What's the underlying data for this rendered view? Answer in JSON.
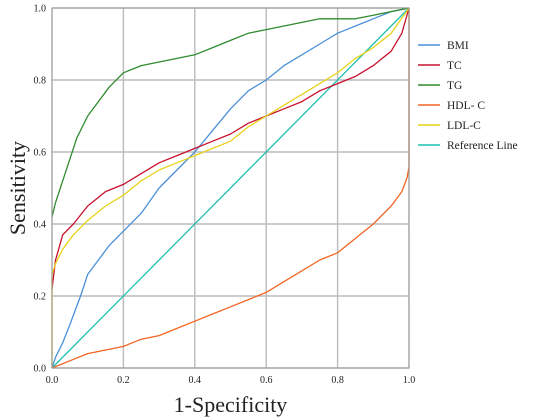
{
  "chart_data": {
    "type": "line",
    "title": "",
    "xlabel": "1-Specificity",
    "ylabel": "Sensitivity",
    "xlim": [
      0,
      1
    ],
    "ylim": [
      0,
      1
    ],
    "x_ticks": [
      "0.0",
      "0.2",
      "0.4",
      "0.6",
      "0.8",
      "1.0"
    ],
    "y_ticks": [
      "0.0",
      "0.2",
      "0.4",
      "0.6",
      "0.8",
      "1.0"
    ],
    "grid": true,
    "legend_position": "right",
    "series": [
      {
        "name": "BMI",
        "color": "#4a90d9",
        "points": [
          [
            0,
            0
          ],
          [
            0.01,
            0.03
          ],
          [
            0.03,
            0.07
          ],
          [
            0.05,
            0.12
          ],
          [
            0.08,
            0.2
          ],
          [
            0.1,
            0.26
          ],
          [
            0.13,
            0.3
          ],
          [
            0.16,
            0.34
          ],
          [
            0.2,
            0.38
          ],
          [
            0.25,
            0.43
          ],
          [
            0.3,
            0.5
          ],
          [
            0.35,
            0.55
          ],
          [
            0.4,
            0.6
          ],
          [
            0.45,
            0.66
          ],
          [
            0.5,
            0.72
          ],
          [
            0.55,
            0.77
          ],
          [
            0.6,
            0.8
          ],
          [
            0.65,
            0.84
          ],
          [
            0.7,
            0.87
          ],
          [
            0.75,
            0.9
          ],
          [
            0.8,
            0.93
          ],
          [
            0.85,
            0.95
          ],
          [
            0.9,
            0.97
          ],
          [
            0.95,
            0.99
          ],
          [
            1,
            1
          ]
        ]
      },
      {
        "name": "TC",
        "color": "#c8102e",
        "points": [
          [
            0,
            0.22
          ],
          [
            0.01,
            0.3
          ],
          [
            0.03,
            0.37
          ],
          [
            0.06,
            0.4
          ],
          [
            0.1,
            0.45
          ],
          [
            0.15,
            0.49
          ],
          [
            0.2,
            0.51
          ],
          [
            0.25,
            0.54
          ],
          [
            0.3,
            0.57
          ],
          [
            0.35,
            0.59
          ],
          [
            0.4,
            0.61
          ],
          [
            0.45,
            0.63
          ],
          [
            0.5,
            0.65
          ],
          [
            0.55,
            0.68
          ],
          [
            0.6,
            0.7
          ],
          [
            0.65,
            0.72
          ],
          [
            0.7,
            0.74
          ],
          [
            0.75,
            0.77
          ],
          [
            0.8,
            0.79
          ],
          [
            0.85,
            0.81
          ],
          [
            0.9,
            0.84
          ],
          [
            0.95,
            0.88
          ],
          [
            0.98,
            0.93
          ],
          [
            1,
            1
          ]
        ]
      },
      {
        "name": "TG",
        "color": "#2e8b2e",
        "points": [
          [
            0,
            0.42
          ],
          [
            0.01,
            0.46
          ],
          [
            0.03,
            0.52
          ],
          [
            0.05,
            0.58
          ],
          [
            0.07,
            0.64
          ],
          [
            0.1,
            0.7
          ],
          [
            0.13,
            0.74
          ],
          [
            0.16,
            0.78
          ],
          [
            0.2,
            0.82
          ],
          [
            0.25,
            0.84
          ],
          [
            0.3,
            0.85
          ],
          [
            0.35,
            0.86
          ],
          [
            0.4,
            0.87
          ],
          [
            0.45,
            0.89
          ],
          [
            0.5,
            0.91
          ],
          [
            0.55,
            0.93
          ],
          [
            0.6,
            0.94
          ],
          [
            0.65,
            0.95
          ],
          [
            0.7,
            0.96
          ],
          [
            0.75,
            0.97
          ],
          [
            0.8,
            0.97
          ],
          [
            0.85,
            0.97
          ],
          [
            0.9,
            0.98
          ],
          [
            0.95,
            0.99
          ],
          [
            1,
            1
          ]
        ]
      },
      {
        "name": "HDL- C",
        "color": "#f26522",
        "points": [
          [
            0,
            0
          ],
          [
            0.05,
            0.02
          ],
          [
            0.1,
            0.04
          ],
          [
            0.15,
            0.05
          ],
          [
            0.2,
            0.06
          ],
          [
            0.25,
            0.08
          ],
          [
            0.3,
            0.09
          ],
          [
            0.35,
            0.11
          ],
          [
            0.4,
            0.13
          ],
          [
            0.45,
            0.15
          ],
          [
            0.5,
            0.17
          ],
          [
            0.55,
            0.19
          ],
          [
            0.6,
            0.21
          ],
          [
            0.65,
            0.24
          ],
          [
            0.7,
            0.27
          ],
          [
            0.75,
            0.3
          ],
          [
            0.8,
            0.32
          ],
          [
            0.85,
            0.36
          ],
          [
            0.9,
            0.4
          ],
          [
            0.95,
            0.45
          ],
          [
            0.98,
            0.49
          ],
          [
            0.995,
            0.53
          ],
          [
            1,
            0.56
          ],
          [
            1,
            1
          ]
        ]
      },
      {
        "name": "LDL-C",
        "color": "#e6d21a",
        "points": [
          [
            0,
            0
          ],
          [
            0,
            0.26
          ],
          [
            0.01,
            0.29
          ],
          [
            0.03,
            0.33
          ],
          [
            0.06,
            0.37
          ],
          [
            0.1,
            0.41
          ],
          [
            0.15,
            0.45
          ],
          [
            0.2,
            0.48
          ],
          [
            0.25,
            0.52
          ],
          [
            0.3,
            0.55
          ],
          [
            0.35,
            0.57
          ],
          [
            0.4,
            0.59
          ],
          [
            0.45,
            0.61
          ],
          [
            0.5,
            0.63
          ],
          [
            0.55,
            0.67
          ],
          [
            0.6,
            0.7
          ],
          [
            0.65,
            0.73
          ],
          [
            0.7,
            0.76
          ],
          [
            0.75,
            0.79
          ],
          [
            0.8,
            0.82
          ],
          [
            0.85,
            0.86
          ],
          [
            0.9,
            0.89
          ],
          [
            0.95,
            0.93
          ],
          [
            1,
            1
          ]
        ]
      },
      {
        "name": "Reference Line",
        "color": "#1fbfb0",
        "points": [
          [
            0,
            0
          ],
          [
            1,
            1
          ]
        ]
      }
    ]
  }
}
